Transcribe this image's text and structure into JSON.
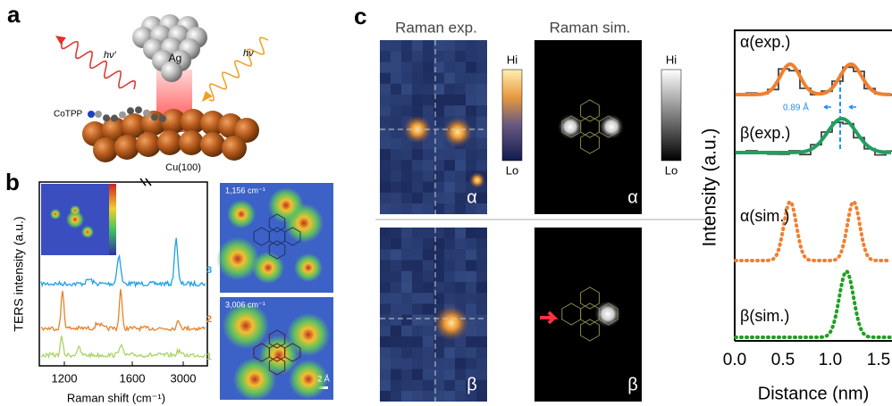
{
  "panel_a": {
    "label": "a",
    "photon_out": "hν′",
    "photon_in": "hν",
    "tip": "Ag",
    "molecule": "CoTPP",
    "substrate": "Cu(100)"
  },
  "panel_b": {
    "label": "b",
    "y_axis_label": "TERS intensity (a.u.)",
    "x_axis_label": "Raman shift (cm⁻¹)",
    "x_ticks": [
      "1200",
      "1600",
      "3000"
    ],
    "trace_labels": [
      "3",
      "2",
      "1"
    ],
    "map_labels": [
      "1,156 cm⁻¹",
      "3,006 cm⁻¹"
    ],
    "scale_bar": "2 Å"
  },
  "panel_c": {
    "label": "c",
    "column_titles": [
      "Raman exp.",
      "Raman sim."
    ],
    "colorbar_high": [
      "Hi",
      "Hi"
    ],
    "colorbar_low": [
      "Lo",
      "Lo"
    ],
    "image_labels": [
      "α",
      "α",
      "β",
      "β"
    ],
    "profile": {
      "y_axis_label": "Intensity (a.u.)",
      "x_axis_label": "Distance (nm)",
      "x_ticks": [
        "0.0",
        "0.5",
        "1.0",
        "1.5"
      ],
      "curve_labels": [
        "α(exp.)",
        "β(exp.)",
        "α(sim.)",
        "β(sim.)"
      ],
      "separation": "0.89 Å"
    }
  }
}
